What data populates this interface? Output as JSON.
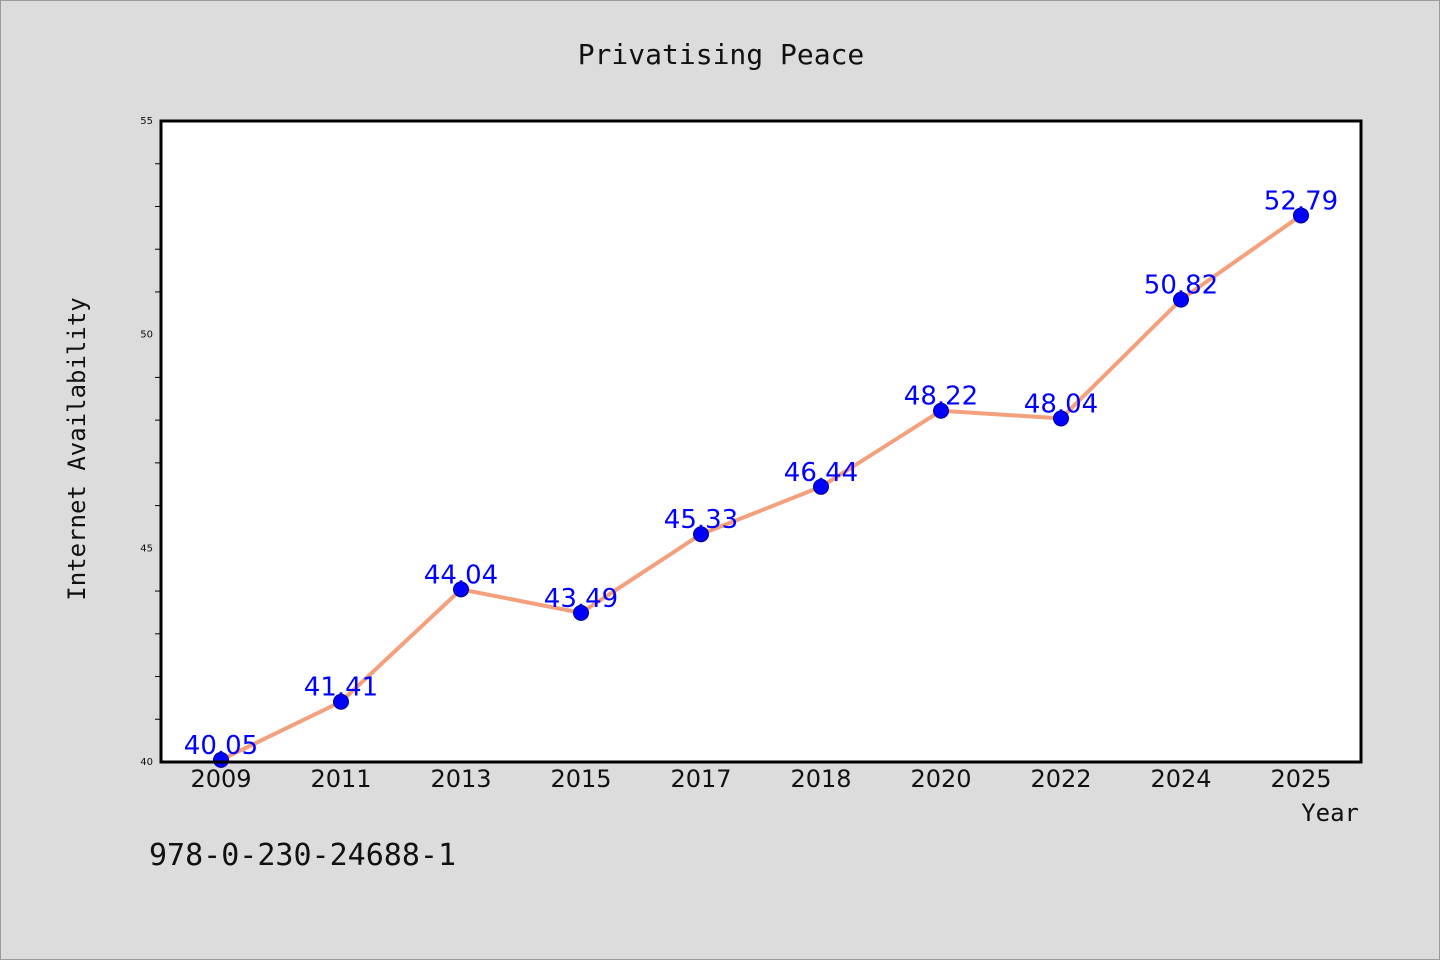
{
  "page": {
    "background": "#dcdcdc"
  },
  "chart_data": {
    "type": "line",
    "title": "Privatising Peace",
    "xlabel": "Year",
    "ylabel": "Internet Availability",
    "categories": [
      "2009",
      "2011",
      "2013",
      "2015",
      "2017",
      "2018",
      "2020",
      "2022",
      "2024",
      "2025"
    ],
    "series": [
      {
        "values": [
          40.05,
          41.41,
          44.04,
          43.49,
          45.33,
          46.44,
          48.22,
          48.04,
          50.82,
          52.79
        ],
        "line_color": "#f4a07c",
        "marker_color": "#0000ff",
        "label_color": "#0000ff"
      }
    ],
    "data_labels": [
      "40.05",
      "41.41",
      "44.04",
      "43.49",
      "45.33",
      "46.44",
      "48.22",
      "48.04",
      "50.82",
      "52.79"
    ],
    "ylim": [
      40,
      55
    ],
    "y_major_ticks": [
      40,
      45,
      50,
      55
    ],
    "y_tick_labels": [
      "40",
      "45",
      "50",
      "55"
    ],
    "y_minor_step": 1,
    "grid": false,
    "legend": "none",
    "plot_background": "#ffffff"
  },
  "footer": {
    "isbn": "978-0-230-24688-1"
  }
}
